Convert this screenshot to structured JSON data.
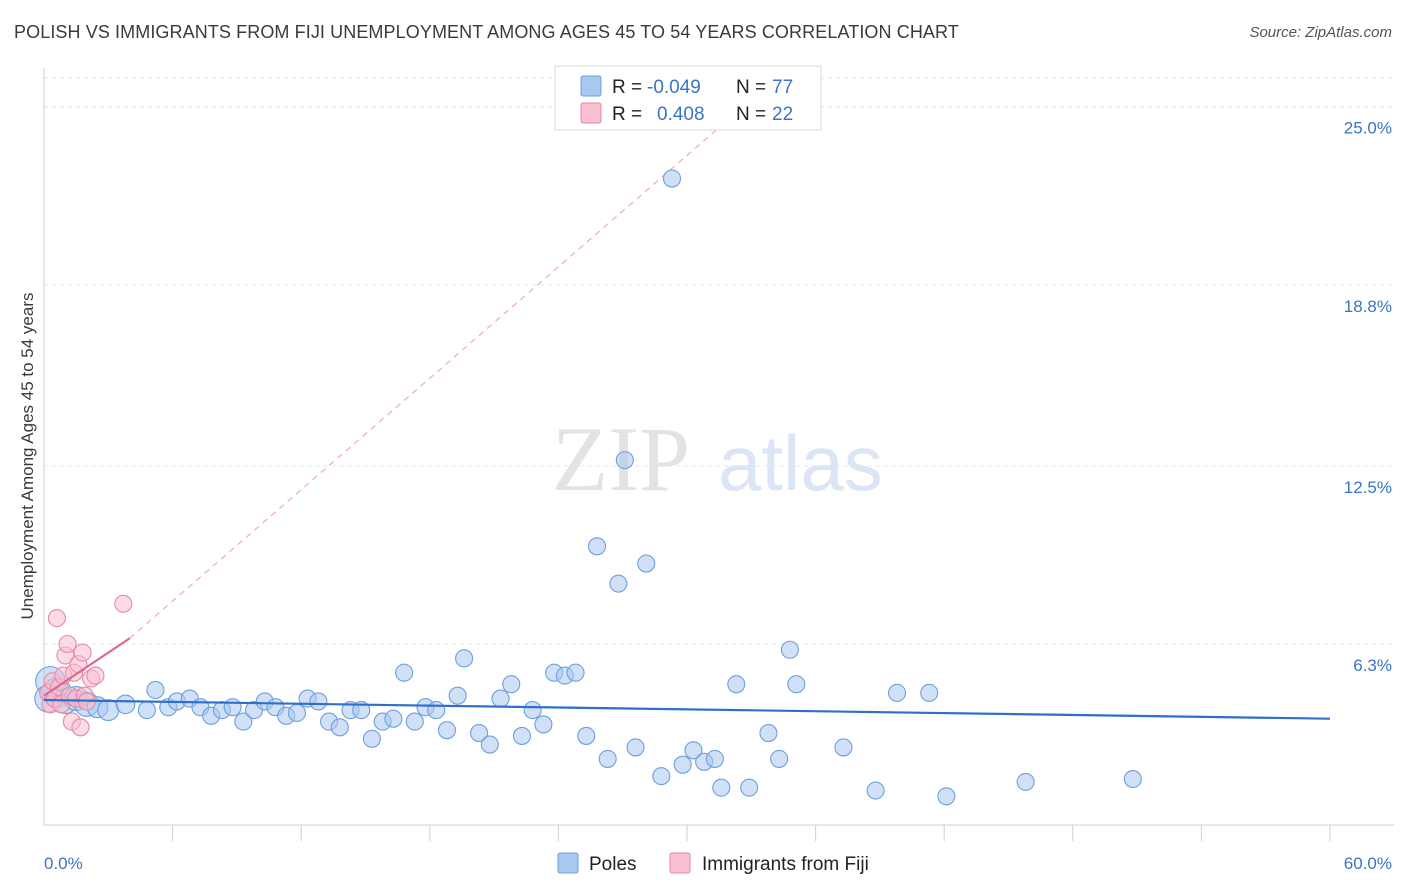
{
  "title": "POLISH VS IMMIGRANTS FROM FIJI UNEMPLOYMENT AMONG AGES 45 TO 54 YEARS CORRELATION CHART",
  "source": "Source: ZipAtlas.com",
  "watermark": {
    "zip": "ZIP",
    "atlas": "atlas"
  },
  "legend": {
    "r_label": "R =",
    "n_label": "N =",
    "rows": [
      {
        "r": "-0.049",
        "n": "77",
        "color": "#a9c8f0",
        "stroke": "#6f9fdc"
      },
      {
        "r": "0.408",
        "n": "22",
        "color": "#f8bfd0",
        "stroke": "#e58aa7"
      }
    ]
  },
  "chart_data": {
    "type": "scatter",
    "title": "POLISH VS IMMIGRANTS FROM FIJI UNEMPLOYMENT AMONG AGES 45 TO 54 YEARS CORRELATION CHART",
    "xlabel": "",
    "ylabel": "Unemployment Among Ages 45 to 54 years",
    "xlim": [
      0,
      60
    ],
    "ylim": [
      0,
      26
    ],
    "x_tick_labels": [
      "0.0%",
      "60.0%"
    ],
    "y_ticks": [
      {
        "value": 6.3,
        "label": "6.3%"
      },
      {
        "value": 12.5,
        "label": "12.5%"
      },
      {
        "value": 18.8,
        "label": "18.8%"
      },
      {
        "value": 25.0,
        "label": "25.0%"
      }
    ],
    "series": [
      {
        "name": "Poles",
        "color": "#a9c8f0",
        "stroke": "#6f9fdc",
        "trend": {
          "x": [
            0,
            60
          ],
          "y": [
            4.35,
            3.7
          ],
          "color": "#2d6fcb"
        },
        "points": [
          {
            "x": 0.3,
            "y": 5.0,
            "s": 3
          },
          {
            "x": 0.6,
            "y": 4.6,
            "s": 3
          },
          {
            "x": 1.0,
            "y": 4.3,
            "s": 2
          },
          {
            "x": 1.5,
            "y": 4.4,
            "s": 2
          },
          {
            "x": 2.0,
            "y": 4.2,
            "s": 2
          },
          {
            "x": 2.5,
            "y": 4.1,
            "s": 1.5
          },
          {
            "x": 3.0,
            "y": 4.0,
            "s": 1.5
          },
          {
            "x": 3.8,
            "y": 4.2,
            "s": 1.2
          },
          {
            "x": 4.8,
            "y": 4.0,
            "s": 1
          },
          {
            "x": 5.2,
            "y": 4.7,
            "s": 1
          },
          {
            "x": 5.8,
            "y": 4.1,
            "s": 1
          },
          {
            "x": 6.2,
            "y": 4.3,
            "s": 1
          },
          {
            "x": 6.8,
            "y": 4.4,
            "s": 1
          },
          {
            "x": 7.3,
            "y": 4.1,
            "s": 1
          },
          {
            "x": 7.8,
            "y": 3.8,
            "s": 1
          },
          {
            "x": 8.3,
            "y": 4.0,
            "s": 1
          },
          {
            "x": 8.8,
            "y": 4.1,
            "s": 1
          },
          {
            "x": 9.3,
            "y": 3.6,
            "s": 1
          },
          {
            "x": 9.8,
            "y": 4.0,
            "s": 1
          },
          {
            "x": 10.3,
            "y": 4.3,
            "s": 1
          },
          {
            "x": 10.8,
            "y": 4.1,
            "s": 1
          },
          {
            "x": 11.3,
            "y": 3.8,
            "s": 1
          },
          {
            "x": 11.8,
            "y": 3.9,
            "s": 1
          },
          {
            "x": 12.3,
            "y": 4.4,
            "s": 1
          },
          {
            "x": 12.8,
            "y": 4.3,
            "s": 1
          },
          {
            "x": 13.3,
            "y": 3.6,
            "s": 1
          },
          {
            "x": 13.8,
            "y": 3.4,
            "s": 1
          },
          {
            "x": 14.3,
            "y": 4.0,
            "s": 1
          },
          {
            "x": 14.8,
            "y": 4.0,
            "s": 1
          },
          {
            "x": 15.3,
            "y": 3.0,
            "s": 1
          },
          {
            "x": 15.8,
            "y": 3.6,
            "s": 1
          },
          {
            "x": 16.3,
            "y": 3.7,
            "s": 1
          },
          {
            "x": 16.8,
            "y": 5.3,
            "s": 1
          },
          {
            "x": 17.3,
            "y": 3.6,
            "s": 1
          },
          {
            "x": 17.8,
            "y": 4.1,
            "s": 1
          },
          {
            "x": 18.3,
            "y": 4.0,
            "s": 1
          },
          {
            "x": 18.8,
            "y": 3.3,
            "s": 1
          },
          {
            "x": 19.3,
            "y": 4.5,
            "s": 1
          },
          {
            "x": 19.6,
            "y": 5.8,
            "s": 1
          },
          {
            "x": 20.3,
            "y": 3.2,
            "s": 1
          },
          {
            "x": 20.8,
            "y": 2.8,
            "s": 1
          },
          {
            "x": 21.3,
            "y": 4.4,
            "s": 1
          },
          {
            "x": 21.8,
            "y": 4.9,
            "s": 1
          },
          {
            "x": 22.3,
            "y": 3.1,
            "s": 1
          },
          {
            "x": 22.8,
            "y": 4.0,
            "s": 1
          },
          {
            "x": 23.3,
            "y": 3.5,
            "s": 1
          },
          {
            "x": 23.8,
            "y": 5.3,
            "s": 1
          },
          {
            "x": 24.3,
            "y": 5.2,
            "s": 1
          },
          {
            "x": 24.8,
            "y": 5.3,
            "s": 1
          },
          {
            "x": 25.3,
            "y": 3.1,
            "s": 1
          },
          {
            "x": 25.8,
            "y": 9.7,
            "s": 1
          },
          {
            "x": 26.3,
            "y": 2.3,
            "s": 1
          },
          {
            "x": 26.8,
            "y": 8.4,
            "s": 1
          },
          {
            "x": 27.1,
            "y": 12.7,
            "s": 1
          },
          {
            "x": 27.6,
            "y": 2.7,
            "s": 1
          },
          {
            "x": 28.1,
            "y": 9.1,
            "s": 1
          },
          {
            "x": 28.8,
            "y": 1.7,
            "s": 1
          },
          {
            "x": 29.3,
            "y": 22.5,
            "s": 1
          },
          {
            "x": 29.8,
            "y": 2.1,
            "s": 1
          },
          {
            "x": 30.3,
            "y": 2.6,
            "s": 1
          },
          {
            "x": 30.8,
            "y": 2.2,
            "s": 1
          },
          {
            "x": 31.3,
            "y": 2.3,
            "s": 1
          },
          {
            "x": 31.6,
            "y": 1.3,
            "s": 1
          },
          {
            "x": 32.3,
            "y": 4.9,
            "s": 1
          },
          {
            "x": 32.9,
            "y": 1.3,
            "s": 1
          },
          {
            "x": 33.8,
            "y": 3.2,
            "s": 1
          },
          {
            "x": 34.3,
            "y": 2.3,
            "s": 1
          },
          {
            "x": 34.8,
            "y": 6.1,
            "s": 1
          },
          {
            "x": 35.1,
            "y": 4.9,
            "s": 1
          },
          {
            "x": 37.3,
            "y": 2.7,
            "s": 1
          },
          {
            "x": 38.8,
            "y": 1.2,
            "s": 1
          },
          {
            "x": 39.8,
            "y": 4.6,
            "s": 1
          },
          {
            "x": 41.3,
            "y": 4.6,
            "s": 1
          },
          {
            "x": 42.1,
            "y": 1.0,
            "s": 1
          },
          {
            "x": 45.8,
            "y": 1.5,
            "s": 1
          },
          {
            "x": 50.8,
            "y": 1.6,
            "s": 1
          },
          {
            "x": 0.2,
            "y": 4.4,
            "s": 2.5
          }
        ]
      },
      {
        "name": "Immigrants from Fiji",
        "color": "#f8bfd0",
        "stroke": "#e58aa7",
        "trend": {
          "x": [
            0,
            4
          ],
          "y": [
            4.5,
            6.5
          ],
          "color": "#e0688f",
          "dashed_extension": {
            "x": [
              4,
              32
            ],
            "y": [
              6.5,
              24.6
            ]
          }
        },
        "points": [
          {
            "x": 0.2,
            "y": 4.6,
            "s": 1
          },
          {
            "x": 0.3,
            "y": 4.2,
            "s": 1
          },
          {
            "x": 0.4,
            "y": 5.0,
            "s": 1
          },
          {
            "x": 0.5,
            "y": 4.4,
            "s": 1
          },
          {
            "x": 0.6,
            "y": 7.2,
            "s": 1
          },
          {
            "x": 0.7,
            "y": 4.8,
            "s": 1
          },
          {
            "x": 0.8,
            "y": 4.2,
            "s": 1
          },
          {
            "x": 0.9,
            "y": 5.2,
            "s": 1
          },
          {
            "x": 1.0,
            "y": 5.9,
            "s": 1
          },
          {
            "x": 1.1,
            "y": 6.3,
            "s": 1
          },
          {
            "x": 1.2,
            "y": 4.5,
            "s": 1
          },
          {
            "x": 1.3,
            "y": 3.6,
            "s": 1
          },
          {
            "x": 1.4,
            "y": 5.3,
            "s": 1
          },
          {
            "x": 1.5,
            "y": 4.4,
            "s": 1
          },
          {
            "x": 1.6,
            "y": 5.6,
            "s": 1
          },
          {
            "x": 1.7,
            "y": 3.4,
            "s": 1
          },
          {
            "x": 1.8,
            "y": 6.0,
            "s": 1
          },
          {
            "x": 1.9,
            "y": 4.5,
            "s": 1
          },
          {
            "x": 2.0,
            "y": 4.3,
            "s": 1
          },
          {
            "x": 2.2,
            "y": 5.1,
            "s": 1
          },
          {
            "x": 2.4,
            "y": 5.2,
            "s": 1
          },
          {
            "x": 3.7,
            "y": 7.7,
            "s": 1
          }
        ]
      }
    ],
    "legend_position": "top-center"
  }
}
